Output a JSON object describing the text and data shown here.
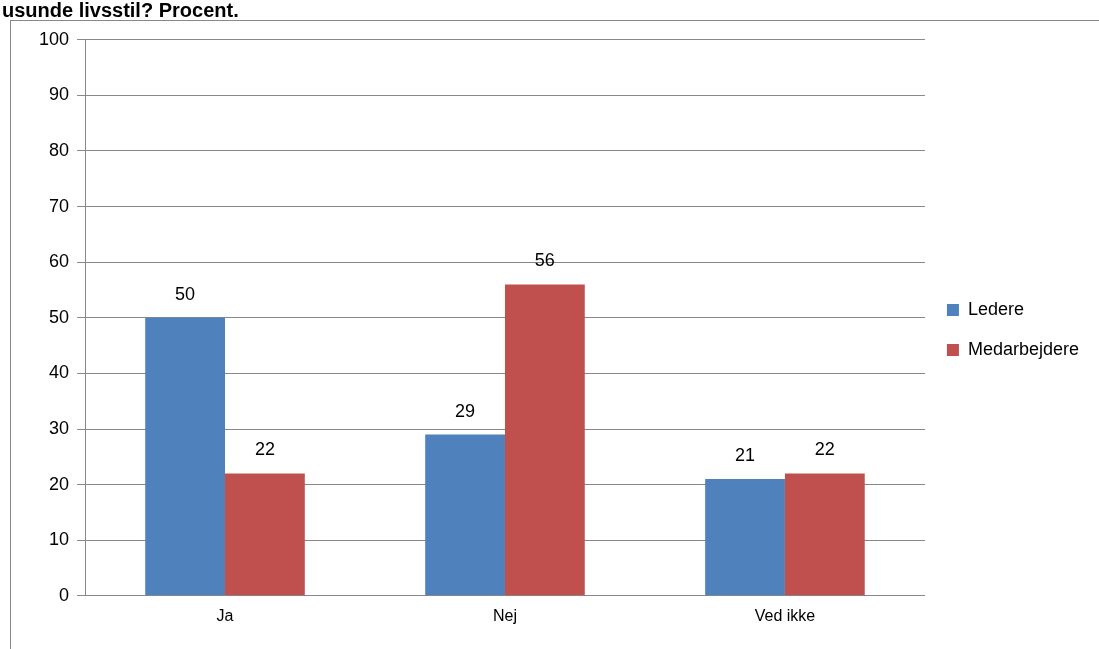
{
  "chart_data": {
    "type": "bar",
    "title": "usunde livsstil? Procent.",
    "categories": [
      "Ja",
      "Nej",
      "Ved ikke"
    ],
    "series": [
      {
        "name": "Ledere",
        "color": "#4f81bd",
        "values": [
          50,
          29,
          21
        ]
      },
      {
        "name": "Medarbejdere",
        "color": "#c0504d",
        "values": [
          22,
          56,
          22
        ]
      }
    ],
    "ylim": [
      0,
      100
    ],
    "yticks": [
      0,
      10,
      20,
      30,
      40,
      50,
      60,
      70,
      80,
      90,
      100
    ],
    "grid": "y",
    "legend": "right",
    "data_labels": true
  }
}
